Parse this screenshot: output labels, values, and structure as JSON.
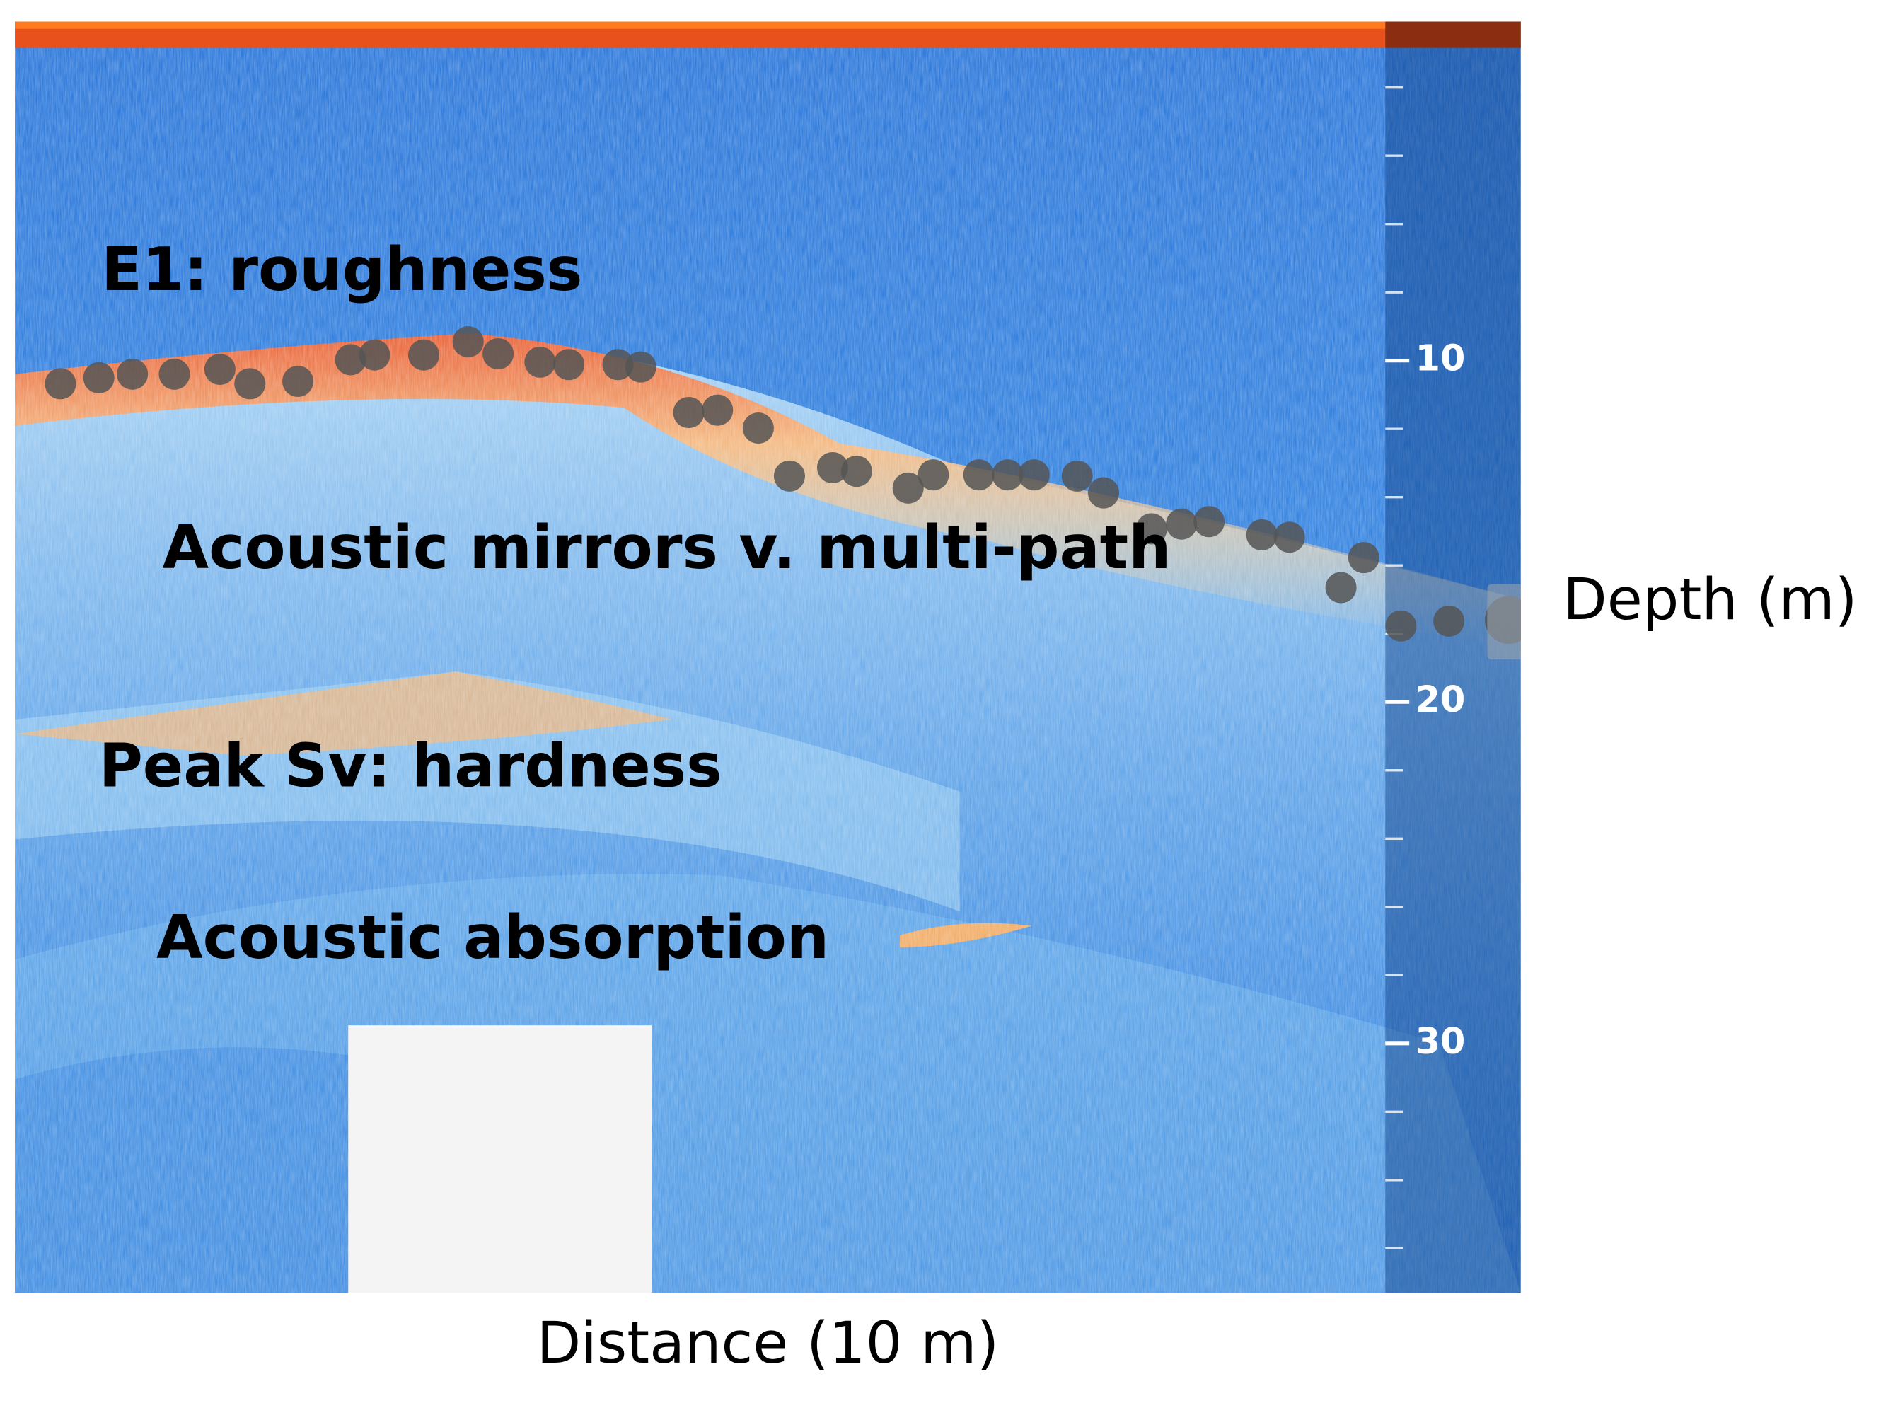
{
  "chart_data": {
    "type": "echogram",
    "annotations": [
      "E1: roughness",
      "Acoustic mirrors v. multi-path",
      "Peak Sv: hardness",
      "Acoustic absorption"
    ],
    "xlabel": "Distance (10 m)",
    "ylabel": "Depth (m)",
    "ylim": [
      0,
      37.3
    ],
    "yticks": [
      10,
      20,
      30
    ]
  }
}
